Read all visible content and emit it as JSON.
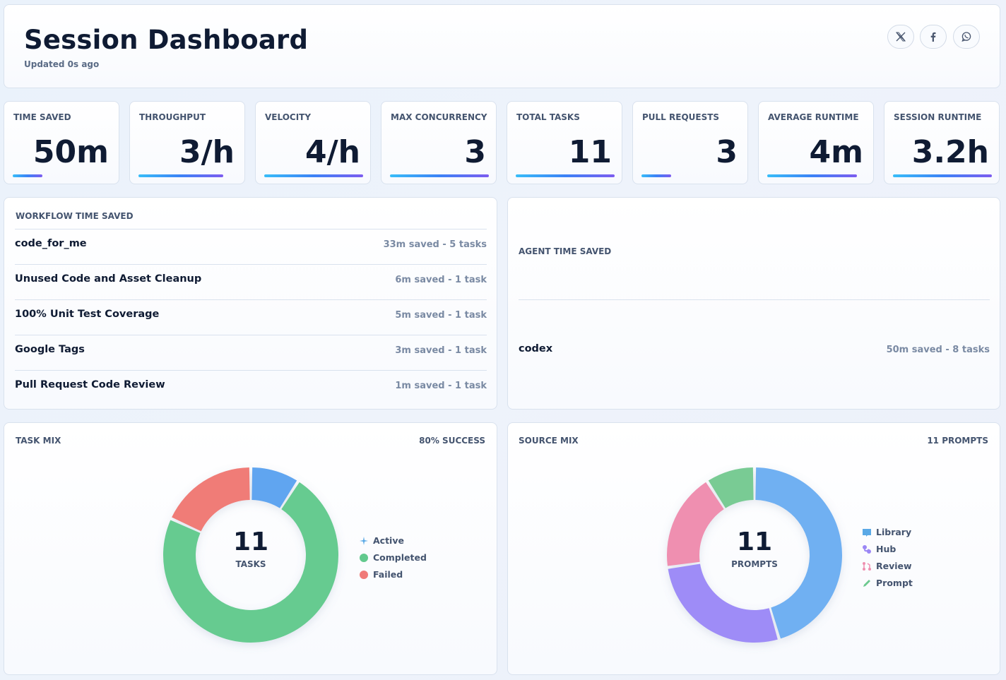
{
  "header": {
    "title": "Session Dashboard",
    "updated": "Updated 0s ago",
    "social": [
      {
        "name": "x-share-icon"
      },
      {
        "name": "facebook-share-icon"
      },
      {
        "name": "whatsapp-share-icon"
      }
    ]
  },
  "metrics": [
    {
      "label": "Time Saved",
      "value": "50m",
      "bar_fraction": 0.3
    },
    {
      "label": "Throughput",
      "value": "3/h",
      "bar_fraction": 0.86
    },
    {
      "label": "Velocity",
      "value": "4/h",
      "bar_fraction": 1.0
    },
    {
      "label": "Max Concurrency",
      "value": "3",
      "bar_fraction": 1.0
    },
    {
      "label": "Total Tasks",
      "value": "11",
      "bar_fraction": 1.0
    },
    {
      "label": "Pull Requests",
      "value": "3",
      "bar_fraction": 0.3
    },
    {
      "label": "Average Runtime",
      "value": "4m",
      "bar_fraction": 0.91
    },
    {
      "label": "Session Runtime",
      "value": "3.2h",
      "bar_fraction": 1.0
    }
  ],
  "workflow": {
    "label": "Workflow Time Saved",
    "rows": [
      {
        "name": "code_for_me",
        "meta": "33m saved - 5 tasks"
      },
      {
        "name": "Unused Code and Asset Cleanup",
        "meta": "6m saved - 1 task"
      },
      {
        "name": "100% Unit Test Coverage",
        "meta": "5m saved - 1 task"
      },
      {
        "name": "Google Tags",
        "meta": "3m saved - 1 task"
      },
      {
        "name": "Pull Request Code Review",
        "meta": "1m saved - 1 task"
      }
    ]
  },
  "agent": {
    "label": "Agent Time Saved",
    "rows": [
      {
        "name": "codex",
        "meta": "50m saved - 8 tasks"
      }
    ]
  },
  "task_mix": {
    "label": "Task Mix",
    "right": "80% Success",
    "center_value": "11",
    "center_label": "Tasks",
    "legend": [
      {
        "label": "Active",
        "color": "#5aa9e6",
        "icon": "pulse-icon"
      },
      {
        "label": "Completed",
        "color": "#62c98d",
        "icon": "dot-icon"
      },
      {
        "label": "Failed",
        "color": "#f07a78",
        "icon": "dot-icon"
      }
    ]
  },
  "source_mix": {
    "label": "Source Mix",
    "right": "11 Prompts",
    "center_value": "11",
    "center_label": "Prompts",
    "legend": [
      {
        "label": "Library",
        "color": "#5aa9e6",
        "icon": "book-icon"
      },
      {
        "label": "Hub",
        "color": "#9b87f5",
        "icon": "hub-icon"
      },
      {
        "label": "Review",
        "color": "#ef8fb0",
        "icon": "pull-request-icon"
      },
      {
        "label": "Prompt",
        "color": "#6cc98f",
        "icon": "pencil-icon"
      }
    ]
  },
  "chart_data": [
    {
      "type": "pie",
      "categories": [
        "Active",
        "Completed",
        "Failed"
      ],
      "values": [
        1,
        8,
        2
      ],
      "colors": [
        "#60a5f0",
        "#66cb90",
        "#f07c77"
      ]
    },
    {
      "type": "pie",
      "categories": [
        "Library",
        "Hub",
        "Review",
        "Prompt"
      ],
      "values": [
        5,
        3,
        2,
        1
      ],
      "colors": [
        "#6fb0f2",
        "#9e8cf7",
        "#ef8fb0",
        "#79cb94"
      ]
    }
  ]
}
